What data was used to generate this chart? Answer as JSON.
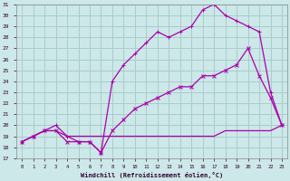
{
  "xlabel": "Windchill (Refroidissement éolien,°C)",
  "background_color": "#cce8e8",
  "grid_color": "#aacccc",
  "line_color": "#aa00aa",
  "x": [
    0,
    1,
    2,
    3,
    4,
    5,
    6,
    7,
    8,
    9,
    10,
    11,
    12,
    13,
    14,
    15,
    16,
    17,
    18,
    19,
    20,
    21,
    22,
    23
  ],
  "line1": [
    18.5,
    19.0,
    19.5,
    19.5,
    19.0,
    19.0,
    19.0,
    19.0,
    19.0,
    19.0,
    19.0,
    19.0,
    19.0,
    19.0,
    19.0,
    19.0,
    19.0,
    19.0,
    19.5,
    19.5,
    19.5,
    19.5,
    19.5,
    20.0
  ],
  "line2": [
    18.5,
    19.0,
    19.5,
    19.5,
    18.5,
    18.5,
    18.5,
    17.5,
    19.5,
    20.5,
    21.5,
    22.0,
    22.5,
    23.0,
    23.5,
    23.5,
    24.5,
    24.5,
    25.0,
    25.5,
    27.0,
    24.5,
    22.5,
    20.0
  ],
  "line3": [
    18.5,
    19.0,
    19.5,
    20.0,
    19.0,
    18.5,
    18.5,
    17.5,
    24.0,
    25.5,
    26.5,
    27.5,
    28.5,
    28.0,
    28.5,
    29.0,
    30.5,
    31.0,
    30.0,
    29.5,
    29.0,
    28.5,
    23.0,
    20.0
  ],
  "ylim": [
    17,
    31
  ],
  "xlim": [
    -0.5,
    23.5
  ],
  "yticks": [
    17,
    18,
    19,
    20,
    21,
    22,
    23,
    24,
    25,
    26,
    27,
    28,
    29,
    30,
    31
  ],
  "xticks": [
    0,
    1,
    2,
    3,
    4,
    5,
    6,
    7,
    8,
    9,
    10,
    11,
    12,
    13,
    14,
    15,
    16,
    17,
    18,
    19,
    20,
    21,
    22,
    23
  ]
}
